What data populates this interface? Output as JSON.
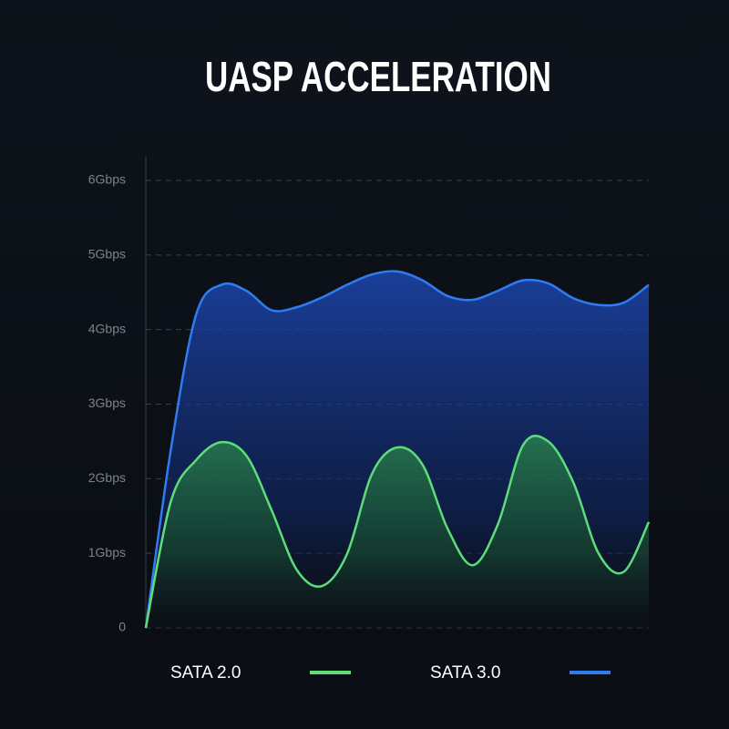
{
  "chart_data": {
    "type": "area",
    "title": "UASP ACCELERATION",
    "x": [
      0,
      5,
      10,
      15,
      20,
      25,
      30,
      35,
      40,
      45,
      50,
      55,
      60,
      65,
      70,
      75,
      80,
      85,
      90,
      95,
      100
    ],
    "xlim": [
      0,
      100
    ],
    "series": [
      {
        "name": "SATA 2.0",
        "color": "#5fdc7a",
        "values": [
          0,
          1.7,
          2.25,
          2.49,
          2.31,
          1.58,
          0.78,
          0.56,
          0.99,
          2.07,
          2.42,
          2.19,
          1.33,
          0.84,
          1.39,
          2.45,
          2.5,
          1.95,
          1.0,
          0.75,
          1.42
        ]
      },
      {
        "name": "SATA 3.0",
        "color": "#2f7cf0",
        "values": [
          0,
          2.4,
          4.2,
          4.6,
          4.52,
          4.26,
          4.3,
          4.43,
          4.6,
          4.74,
          4.78,
          4.66,
          4.45,
          4.4,
          4.52,
          4.66,
          4.62,
          4.42,
          4.33,
          4.36,
          4.6
        ]
      }
    ],
    "ylim": [
      0,
      6
    ],
    "yticks": [
      0,
      {
        "value": 1,
        "label": "1Gbps"
      },
      {
        "value": 2,
        "label": "2Gbps"
      },
      {
        "value": 3,
        "label": "3Gbps"
      },
      {
        "value": 4,
        "label": "4Gbps"
      },
      {
        "value": 5,
        "label": "5Gbps"
      },
      {
        "value": 6,
        "label": "6Gbps"
      }
    ],
    "grid": true
  }
}
